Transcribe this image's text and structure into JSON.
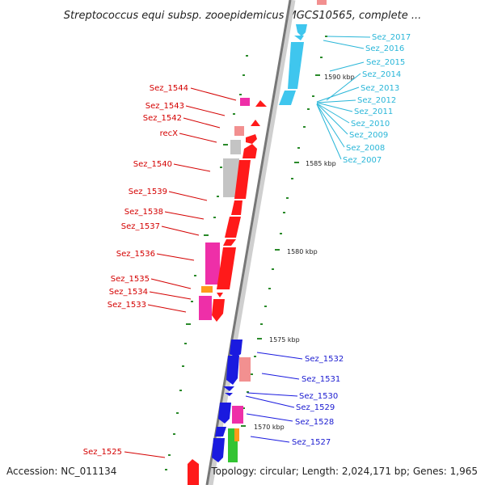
{
  "title": "Streptococcus equi subsp. zooepidemicus MGCS10565, complete ...",
  "footer": {
    "accession": "Accession: NC_011134",
    "topology": "Topology: circular; Length: 2,024,171 bp; Genes: 1,965"
  },
  "colors": {
    "backbone_dark": "#7a7a7a",
    "backbone_light": "#cfcfcf",
    "red": "#ff1a1a",
    "cyan": "#3fc6ee",
    "blue": "#1a1adf",
    "pink": "#ee2fa8",
    "salmon": "#f29090",
    "grey": "#c4c4c4",
    "orange": "#ff9a1a",
    "green": "#33c433",
    "tick": "#2a8a2a"
  },
  "scale_labels": [
    "1590 kbp",
    "1585 kbp",
    "1580 kbp",
    "1575 kbp",
    "1570 kbp"
  ],
  "genes_left": [
    "Sez_1544",
    "Sez_1543",
    "Sez_1542",
    "recX",
    "Sez_1540",
    "Sez_1539",
    "Sez_1538",
    "Sez_1537",
    "Sez_1536",
    "Sez_1535",
    "Sez_1534",
    "Sez_1533",
    "Sez_1525"
  ],
  "genes_right_top": [
    "Sez_2017",
    "Sez_2016",
    "Sez_2015",
    "Sez_2014",
    "Sez_2013",
    "Sez_2012",
    "Sez_2011",
    "Sez_2010",
    "Sez_2009",
    "Sez_2008",
    "Sez_2007"
  ],
  "genes_right_bottom": [
    "Sez_1532",
    "Sez_1531",
    "Sez_1530",
    "Sez_1529",
    "Sez_1528",
    "Sez_1527"
  ]
}
